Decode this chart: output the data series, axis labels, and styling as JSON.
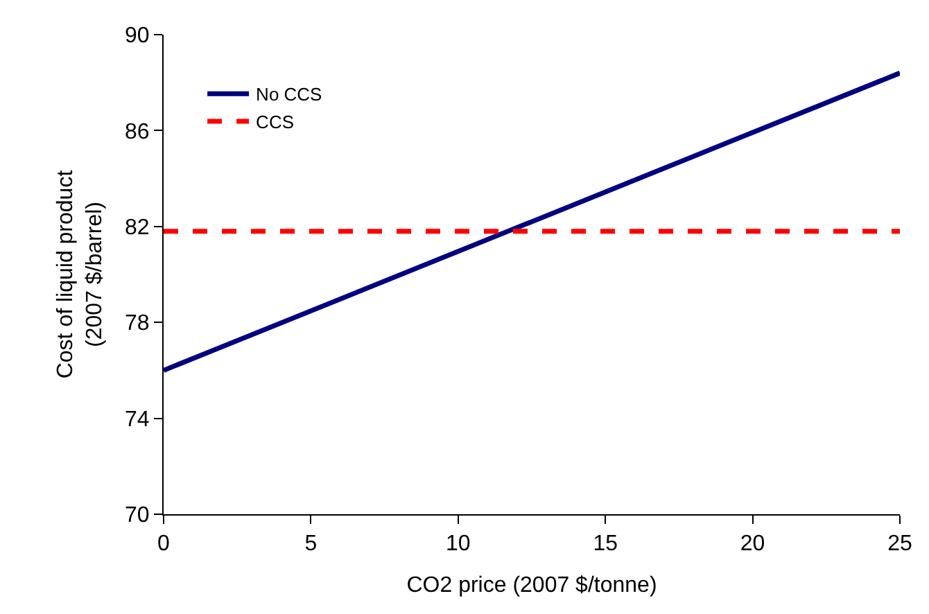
{
  "chart_data": {
    "type": "line",
    "xlabel": "CO2 price (2007 $/tonne)",
    "ylabel": "Cost of liquid product\n(2007 $/barrel)",
    "x": [
      0,
      25
    ],
    "series": [
      {
        "name": "No CCS",
        "color": "#000080",
        "values": [
          76.0,
          88.4
        ],
        "line_style": "solid"
      },
      {
        "name": "CCS",
        "color": "#ff0000",
        "values": [
          81.8,
          81.8
        ],
        "line_style": "dashed"
      }
    ],
    "xlim": [
      0,
      25
    ],
    "xticks": [
      0,
      5,
      10,
      15,
      20,
      25
    ],
    "ylim": [
      70,
      90
    ],
    "yticks": [
      70,
      74,
      78,
      82,
      86,
      90
    ],
    "legend": "top left",
    "marker": "none"
  }
}
